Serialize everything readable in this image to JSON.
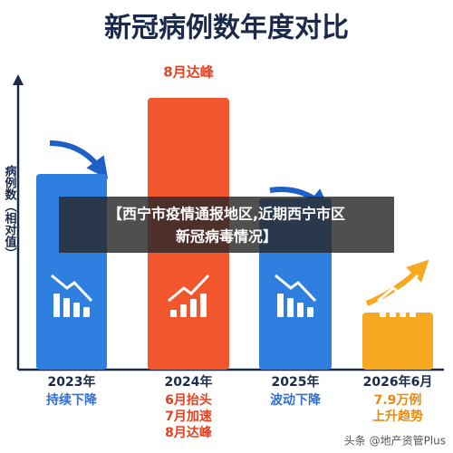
{
  "chart_data": {
    "type": "bar",
    "title": "新冠病例数年度对比",
    "y_label": "病例数（相对值）",
    "categories": [
      "2023年",
      "2024年",
      "2025年",
      "2026年6月"
    ],
    "values": [
      72,
      100,
      63,
      21
    ],
    "colors": [
      "#2f7fe0",
      "#f2562c",
      "#2f7fe0",
      "#f6a821"
    ],
    "ylim": [
      0,
      100
    ],
    "annotation": "8月达峰",
    "sublabels": [
      [
        "持续下降"
      ],
      [
        "6月抬头",
        "7月加速",
        "8月达峰"
      ],
      [
        "波动下降"
      ],
      [
        "7.9万例",
        "上升趋势"
      ]
    ],
    "sublabel_colors": [
      "#2f6fd6",
      "#e5401f",
      "#2f6fd6",
      "#e8890c"
    ]
  },
  "overlay": {
    "lines": [
      "【西宁市疫情通报地区,近期西宁市区",
      "新冠病毒情况】"
    ]
  },
  "watermark": "头条 @地产资管Plus"
}
